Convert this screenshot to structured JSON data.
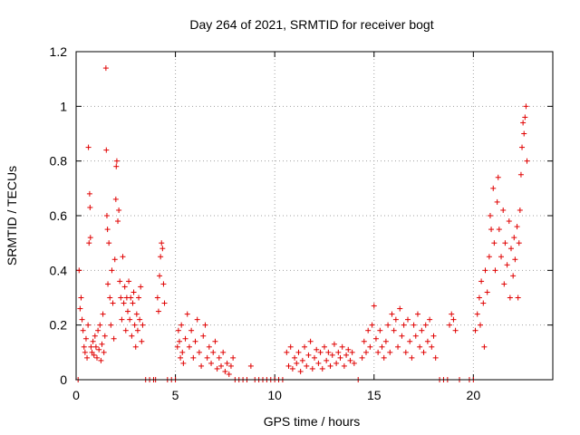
{
  "chart_data": {
    "type": "scatter",
    "title": "Day 264 of 2021, SRMTID for receiver bogt",
    "xlabel": "GPS time / hours",
    "ylabel": "SRMTID / TECUs",
    "xlim": [
      0,
      24
    ],
    "ylim": [
      0,
      1.2
    ],
    "xticks": [
      0,
      5,
      10,
      15,
      20
    ],
    "xtick_labels": [
      "0",
      "5",
      "10",
      "15",
      "20"
    ],
    "yticks": [
      0,
      0.2,
      0.4,
      0.6,
      0.8,
      1.0,
      1.2
    ],
    "ytick_labels": [
      "0",
      "0.2",
      "0.4",
      "0.6",
      "0.8",
      "1",
      "1.2"
    ],
    "grid": true,
    "marker": "+",
    "color": "#e00000",
    "series": [
      {
        "name": "SRMTID",
        "points": [
          [
            0.1,
            0.0
          ],
          [
            0.15,
            0.4
          ],
          [
            0.2,
            0.26
          ],
          [
            0.25,
            0.3
          ],
          [
            0.3,
            0.22
          ],
          [
            0.35,
            0.18
          ],
          [
            0.4,
            0.12
          ],
          [
            0.45,
            0.1
          ],
          [
            0.5,
            0.15
          ],
          [
            0.55,
            0.08
          ],
          [
            0.6,
            0.2
          ],
          [
            0.62,
            0.85
          ],
          [
            0.65,
            0.5
          ],
          [
            0.68,
            0.68
          ],
          [
            0.7,
            0.63
          ],
          [
            0.72,
            0.52
          ],
          [
            0.75,
            0.12
          ],
          [
            0.8,
            0.1
          ],
          [
            0.85,
            0.14
          ],
          [
            0.9,
            0.09
          ],
          [
            0.95,
            0.16
          ],
          [
            1.0,
            0.12
          ],
          [
            1.05,
            0.08
          ],
          [
            1.1,
            0.18
          ],
          [
            1.15,
            0.11
          ],
          [
            1.2,
            0.2
          ],
          [
            1.25,
            0.07
          ],
          [
            1.3,
            0.13
          ],
          [
            1.35,
            0.24
          ],
          [
            1.4,
            0.1
          ],
          [
            1.45,
            0.16
          ],
          [
            1.5,
            1.14
          ],
          [
            1.52,
            0.84
          ],
          [
            1.55,
            0.6
          ],
          [
            1.58,
            0.55
          ],
          [
            1.6,
            0.35
          ],
          [
            1.65,
            0.5
          ],
          [
            1.7,
            0.3
          ],
          [
            1.75,
            0.2
          ],
          [
            1.8,
            0.4
          ],
          [
            1.85,
            0.28
          ],
          [
            1.9,
            0.15
          ],
          [
            1.95,
            0.44
          ],
          [
            2.0,
            0.66
          ],
          [
            2.02,
            0.78
          ],
          [
            2.05,
            0.8
          ],
          [
            2.1,
            0.58
          ],
          [
            2.15,
            0.62
          ],
          [
            2.2,
            0.36
          ],
          [
            2.25,
            0.3
          ],
          [
            2.3,
            0.22
          ],
          [
            2.35,
            0.45
          ],
          [
            2.4,
            0.28
          ],
          [
            2.45,
            0.34
          ],
          [
            2.5,
            0.18
          ],
          [
            2.55,
            0.3
          ],
          [
            2.6,
            0.25
          ],
          [
            2.65,
            0.36
          ],
          [
            2.7,
            0.22
          ],
          [
            2.75,
            0.3
          ],
          [
            2.8,
            0.16
          ],
          [
            2.85,
            0.28
          ],
          [
            2.9,
            0.32
          ],
          [
            2.95,
            0.2
          ],
          [
            3.0,
            0.12
          ],
          [
            3.05,
            0.24
          ],
          [
            3.1,
            0.18
          ],
          [
            3.15,
            0.3
          ],
          [
            3.2,
            0.22
          ],
          [
            3.25,
            0.34
          ],
          [
            3.3,
            0.14
          ],
          [
            3.35,
            0.2
          ],
          [
            3.5,
            0.0
          ],
          [
            3.7,
            0.0
          ],
          [
            3.9,
            0.0
          ],
          [
            4.0,
            0.0
          ],
          [
            4.1,
            0.3
          ],
          [
            4.15,
            0.25
          ],
          [
            4.2,
            0.38
          ],
          [
            4.25,
            0.45
          ],
          [
            4.3,
            0.5
          ],
          [
            4.35,
            0.48
          ],
          [
            4.4,
            0.35
          ],
          [
            4.45,
            0.28
          ],
          [
            4.6,
            0.0
          ],
          [
            4.8,
            0.0
          ],
          [
            5.0,
            0.0
          ],
          [
            5.1,
            0.12
          ],
          [
            5.15,
            0.18
          ],
          [
            5.2,
            0.14
          ],
          [
            5.25,
            0.08
          ],
          [
            5.3,
            0.2
          ],
          [
            5.35,
            0.1
          ],
          [
            5.4,
            0.06
          ],
          [
            5.5,
            0.15
          ],
          [
            5.6,
            0.24
          ],
          [
            5.7,
            0.12
          ],
          [
            5.8,
            0.18
          ],
          [
            5.9,
            0.08
          ],
          [
            6.0,
            0.14
          ],
          [
            6.1,
            0.22
          ],
          [
            6.2,
            0.1
          ],
          [
            6.3,
            0.05
          ],
          [
            6.4,
            0.16
          ],
          [
            6.5,
            0.2
          ],
          [
            6.6,
            0.08
          ],
          [
            6.7,
            0.12
          ],
          [
            6.8,
            0.06
          ],
          [
            6.9,
            0.1
          ],
          [
            7.0,
            0.14
          ],
          [
            7.1,
            0.04
          ],
          [
            7.2,
            0.08
          ],
          [
            7.3,
            0.05
          ],
          [
            7.4,
            0.1
          ],
          [
            7.5,
            0.03
          ],
          [
            7.6,
            0.06
          ],
          [
            7.7,
            0.02
          ],
          [
            7.8,
            0.05
          ],
          [
            7.9,
            0.08
          ],
          [
            8.0,
            0.0
          ],
          [
            8.2,
            0.0
          ],
          [
            8.4,
            0.0
          ],
          [
            8.6,
            0.0
          ],
          [
            8.8,
            0.05
          ],
          [
            9.0,
            0.0
          ],
          [
            9.2,
            0.0
          ],
          [
            9.4,
            0.0
          ],
          [
            9.6,
            0.0
          ],
          [
            9.8,
            0.0
          ],
          [
            10.0,
            0.0
          ],
          [
            10.2,
            0.0
          ],
          [
            10.4,
            0.0
          ],
          [
            10.6,
            0.1
          ],
          [
            10.7,
            0.05
          ],
          [
            10.8,
            0.12
          ],
          [
            10.9,
            0.04
          ],
          [
            11.0,
            0.08
          ],
          [
            11.1,
            0.06
          ],
          [
            11.2,
            0.1
          ],
          [
            11.3,
            0.03
          ],
          [
            11.4,
            0.07
          ],
          [
            11.5,
            0.12
          ],
          [
            11.6,
            0.05
          ],
          [
            11.7,
            0.09
          ],
          [
            11.8,
            0.14
          ],
          [
            11.9,
            0.04
          ],
          [
            12.0,
            0.08
          ],
          [
            12.1,
            0.11
          ],
          [
            12.2,
            0.06
          ],
          [
            12.3,
            0.1
          ],
          [
            12.4,
            0.04
          ],
          [
            12.5,
            0.12
          ],
          [
            12.6,
            0.07
          ],
          [
            12.7,
            0.1
          ],
          [
            12.8,
            0.05
          ],
          [
            12.9,
            0.09
          ],
          [
            13.0,
            0.13
          ],
          [
            13.1,
            0.06
          ],
          [
            13.2,
            0.1
          ],
          [
            13.3,
            0.08
          ],
          [
            13.4,
            0.12
          ],
          [
            13.5,
            0.05
          ],
          [
            13.6,
            0.09
          ],
          [
            13.7,
            0.11
          ],
          [
            13.8,
            0.07
          ],
          [
            13.9,
            0.1
          ],
          [
            14.0,
            0.06
          ],
          [
            14.2,
            0.0
          ],
          [
            14.4,
            0.08
          ],
          [
            14.5,
            0.14
          ],
          [
            14.6,
            0.1
          ],
          [
            14.7,
            0.18
          ],
          [
            14.8,
            0.12
          ],
          [
            14.9,
            0.2
          ],
          [
            15.0,
            0.27
          ],
          [
            15.1,
            0.15
          ],
          [
            15.2,
            0.1
          ],
          [
            15.3,
            0.18
          ],
          [
            15.4,
            0.12
          ],
          [
            15.5,
            0.08
          ],
          [
            15.6,
            0.14
          ],
          [
            15.7,
            0.2
          ],
          [
            15.8,
            0.1
          ],
          [
            15.9,
            0.24
          ],
          [
            16.0,
            0.18
          ],
          [
            16.1,
            0.22
          ],
          [
            16.2,
            0.12
          ],
          [
            16.3,
            0.26
          ],
          [
            16.4,
            0.16
          ],
          [
            16.5,
            0.2
          ],
          [
            16.6,
            0.1
          ],
          [
            16.7,
            0.22
          ],
          [
            16.8,
            0.14
          ],
          [
            16.9,
            0.08
          ],
          [
            17.0,
            0.2
          ],
          [
            17.1,
            0.16
          ],
          [
            17.2,
            0.24
          ],
          [
            17.3,
            0.12
          ],
          [
            17.4,
            0.18
          ],
          [
            17.5,
            0.1
          ],
          [
            17.6,
            0.2
          ],
          [
            17.7,
            0.14
          ],
          [
            17.8,
            0.22
          ],
          [
            17.9,
            0.12
          ],
          [
            18.0,
            0.16
          ],
          [
            18.1,
            0.08
          ],
          [
            18.3,
            0.0
          ],
          [
            18.5,
            0.0
          ],
          [
            18.7,
            0.0
          ],
          [
            18.8,
            0.2
          ],
          [
            18.9,
            0.24
          ],
          [
            19.0,
            0.22
          ],
          [
            19.1,
            0.18
          ],
          [
            19.3,
            0.0
          ],
          [
            19.8,
            0.0
          ],
          [
            20.0,
            0.0
          ],
          [
            20.1,
            0.18
          ],
          [
            20.2,
            0.24
          ],
          [
            20.3,
            0.3
          ],
          [
            20.35,
            0.2
          ],
          [
            20.4,
            0.36
          ],
          [
            20.5,
            0.28
          ],
          [
            20.55,
            0.12
          ],
          [
            20.6,
            0.4
          ],
          [
            20.7,
            0.32
          ],
          [
            20.8,
            0.45
          ],
          [
            20.85,
            0.6
          ],
          [
            20.9,
            0.55
          ],
          [
            21.0,
            0.7
          ],
          [
            21.05,
            0.5
          ],
          [
            21.1,
            0.4
          ],
          [
            21.2,
            0.65
          ],
          [
            21.25,
            0.74
          ],
          [
            21.3,
            0.55
          ],
          [
            21.4,
            0.45
          ],
          [
            21.5,
            0.62
          ],
          [
            21.55,
            0.35
          ],
          [
            21.6,
            0.5
          ],
          [
            21.7,
            0.42
          ],
          [
            21.8,
            0.58
          ],
          [
            21.85,
            0.3
          ],
          [
            21.9,
            0.48
          ],
          [
            22.0,
            0.38
          ],
          [
            22.05,
            0.52
          ],
          [
            22.1,
            0.44
          ],
          [
            22.2,
            0.56
          ],
          [
            22.25,
            0.3
          ],
          [
            22.3,
            0.5
          ],
          [
            22.35,
            0.62
          ],
          [
            22.4,
            0.75
          ],
          [
            22.45,
            0.85
          ],
          [
            22.5,
            0.94
          ],
          [
            22.55,
            0.9
          ],
          [
            22.6,
            0.96
          ],
          [
            22.65,
            1.0
          ],
          [
            22.7,
            0.8
          ]
        ]
      }
    ]
  }
}
